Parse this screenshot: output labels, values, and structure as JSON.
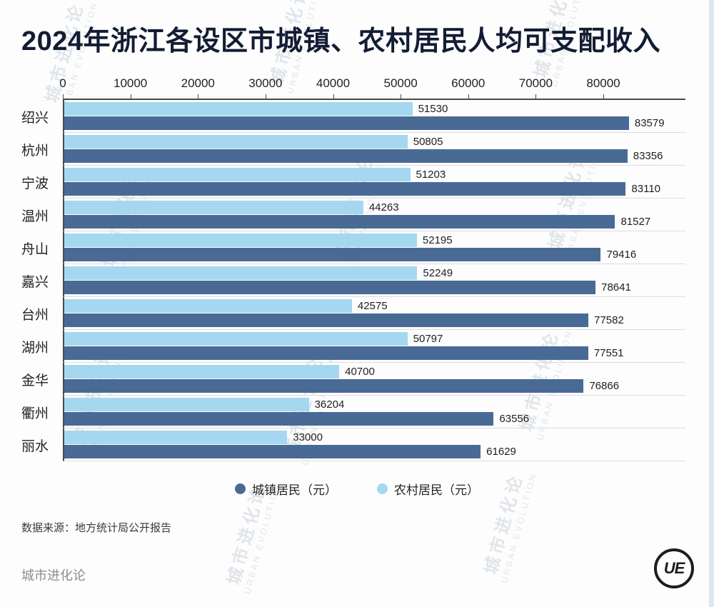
{
  "title": "2024年浙江各设区市城镇、农村居民人均可支配收入",
  "chart_data": {
    "type": "bar",
    "orientation": "horizontal",
    "title": "2024年浙江各设区市城镇、农村居民人均可支配收入",
    "categories": [
      "绍兴",
      "杭州",
      "宁波",
      "温州",
      "舟山",
      "嘉兴",
      "台州",
      "湖州",
      "金华",
      "衢州",
      "丽水"
    ],
    "series": [
      {
        "name": "城镇居民（元）",
        "color": "#4a6a96",
        "values": [
          83579,
          83356,
          83110,
          81527,
          79416,
          78641,
          77582,
          77551,
          76866,
          63556,
          61629
        ]
      },
      {
        "name": "农村居民（元）",
        "color": "#a5d8f0",
        "values": [
          51530,
          50805,
          51203,
          44263,
          52195,
          52249,
          42575,
          50797,
          40700,
          36204,
          33000
        ]
      }
    ],
    "x_axis": {
      "position": "top",
      "ticks": [
        0,
        10000,
        20000,
        30000,
        40000,
        50000,
        60000,
        70000,
        80000
      ],
      "max": 92000
    },
    "legend_position": "bottom",
    "grid": "row-separators"
  },
  "source": "数据来源：地方统计局公开报告",
  "footer_brand": "城市进化论",
  "logo": {
    "text": "UE"
  },
  "watermark": {
    "zh": "城市进化论",
    "en": "URBAN EVOLUTION"
  }
}
